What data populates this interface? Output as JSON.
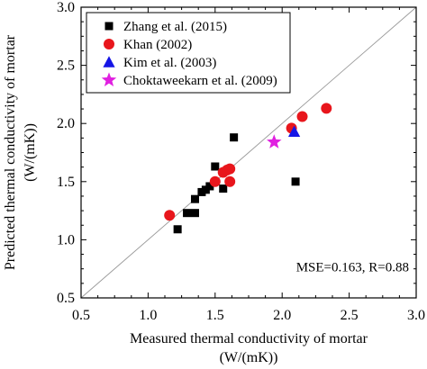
{
  "chart_data": {
    "type": "scatter",
    "xlabel_line1": "Measured thermal conductivity of mortar",
    "xlabel_line2": "(W/(mK))",
    "ylabel_line1": "Predicted thermal conductivity of mortar",
    "ylabel_line2": "(W/(mK))",
    "xlim": [
      0.5,
      3.0
    ],
    "ylim": [
      0.5,
      3.0
    ],
    "xticks": [
      0.5,
      1.0,
      1.5,
      2.0,
      2.5,
      3.0
    ],
    "yticks": [
      0.5,
      1.0,
      1.5,
      2.0,
      2.5,
      3.0
    ],
    "xtick_labels": [
      "0.5",
      "1.0",
      "1.5",
      "2.0",
      "2.5",
      "3.0"
    ],
    "ytick_labels": [
      "0.5",
      "1.0",
      "1.5",
      "2.0",
      "2.5",
      "3.0"
    ],
    "grid": false,
    "legend_position": "top-left",
    "annotation": "MSE=0.163, R=0.88",
    "reference_line": {
      "from": [
        0.5,
        0.5
      ],
      "to": [
        3.0,
        3.0
      ],
      "color": "#999999"
    },
    "series": [
      {
        "name": "Zhang et al. (2015)",
        "marker": "square",
        "color": "#000000",
        "points": [
          [
            1.22,
            1.09
          ],
          [
            1.29,
            1.23
          ],
          [
            1.35,
            1.23
          ],
          [
            1.35,
            1.35
          ],
          [
            1.4,
            1.41
          ],
          [
            1.43,
            1.43
          ],
          [
            1.46,
            1.46
          ],
          [
            1.5,
            1.63
          ],
          [
            1.56,
            1.44
          ],
          [
            1.64,
            1.88
          ],
          [
            2.1,
            1.5
          ]
        ]
      },
      {
        "name": "Khan (2002)",
        "marker": "circle",
        "color": "#e8161c",
        "points": [
          [
            1.16,
            1.21
          ],
          [
            1.5,
            1.5
          ],
          [
            1.56,
            1.58
          ],
          [
            1.59,
            1.6
          ],
          [
            1.61,
            1.61
          ],
          [
            1.61,
            1.5
          ],
          [
            2.07,
            1.96
          ],
          [
            2.15,
            2.06
          ],
          [
            2.33,
            2.13
          ]
        ]
      },
      {
        "name": "Kim et al. (2003)",
        "marker": "triangle",
        "color": "#1515e6",
        "points": [
          [
            2.09,
            1.93
          ]
        ]
      },
      {
        "name": "Choktaweekarn et al. (2009)",
        "marker": "star",
        "color": "#e020e0",
        "points": [
          [
            1.94,
            1.84
          ]
        ]
      }
    ]
  }
}
